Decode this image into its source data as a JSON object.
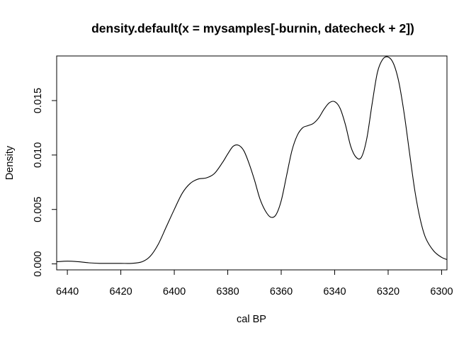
{
  "chart_data": {
    "type": "line",
    "title": "density.default(x = mysamples[-burnin, datecheck + 2])",
    "xlabel": "cal BP",
    "ylabel": "Density",
    "x_reversed": true,
    "xlim": [
      6444,
      6298
    ],
    "ylim": [
      -0.00055,
      0.0191
    ],
    "x_ticks": [
      6440,
      6420,
      6400,
      6380,
      6360,
      6340,
      6320,
      6300
    ],
    "x_tick_labels": [
      "6440",
      "6420",
      "6400",
      "6380",
      "6360",
      "6340",
      "6320",
      "6300"
    ],
    "y_ticks": [
      0.0,
      0.005,
      0.01,
      0.015
    ],
    "y_tick_labels": [
      "0.000",
      "0.005",
      "0.010",
      "0.015"
    ],
    "grid": false,
    "series": [
      {
        "x": [
          6444,
          6440,
          6436,
          6432,
          6428,
          6424,
          6420,
          6416,
          6412,
          6409,
          6406,
          6403,
          6400,
          6397,
          6394,
          6391,
          6388,
          6385,
          6382,
          6380,
          6378,
          6376,
          6374,
          6372,
          6370,
          6368,
          6366,
          6364,
          6362,
          6360,
          6358,
          6356,
          6354,
          6352,
          6350,
          6348,
          6346,
          6344,
          6342,
          6340,
          6338,
          6336,
          6334,
          6332,
          6330,
          6328,
          6326,
          6324,
          6322,
          6320,
          6318,
          6316,
          6314,
          6312,
          6310,
          6308,
          6306,
          6303,
          6300,
          6298
        ],
        "y": [
          0.0002,
          0.00025,
          0.0002,
          0.0001,
          5e-05,
          5e-05,
          5e-05,
          5e-05,
          0.0002,
          0.0007,
          0.0018,
          0.0034,
          0.005,
          0.0065,
          0.0074,
          0.0078,
          0.0079,
          0.0083,
          0.0093,
          0.0101,
          0.0108,
          0.0109,
          0.0104,
          0.0092,
          0.0077,
          0.006,
          0.0049,
          0.0043,
          0.0045,
          0.0058,
          0.0081,
          0.0104,
          0.0118,
          0.0125,
          0.0127,
          0.0129,
          0.0134,
          0.0142,
          0.0148,
          0.0149,
          0.0143,
          0.0128,
          0.0108,
          0.0098,
          0.0098,
          0.0115,
          0.0147,
          0.0176,
          0.0188,
          0.019,
          0.0184,
          0.0167,
          0.0138,
          0.0102,
          0.0067,
          0.0041,
          0.0024,
          0.0012,
          0.0006,
          0.0004
        ]
      }
    ]
  }
}
